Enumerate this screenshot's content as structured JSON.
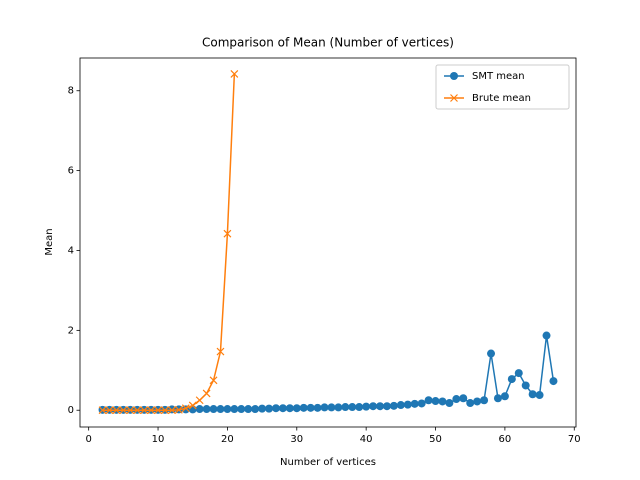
{
  "chart_data": {
    "type": "line",
    "title": "Comparison of Mean (Number of vertices)",
    "x_label": "Number of vertices",
    "y_label": "Mean",
    "xlim": [
      -1.25,
      70.25
    ],
    "ylim": [
      -0.42,
      8.82
    ],
    "xticks": [
      0,
      10,
      20,
      30,
      40,
      50,
      60,
      70
    ],
    "yticks": [
      0,
      2,
      4,
      6,
      8
    ],
    "legend": "upper right",
    "series": [
      {
        "name": "SMT mean",
        "color": "#1f77b4",
        "marker": "o",
        "x": [
          2,
          3,
          4,
          5,
          6,
          7,
          8,
          9,
          10,
          11,
          12,
          13,
          14,
          15,
          16,
          17,
          18,
          19,
          20,
          21,
          22,
          23,
          24,
          25,
          26,
          27,
          28,
          29,
          30,
          31,
          32,
          33,
          34,
          35,
          36,
          37,
          38,
          39,
          40,
          41,
          42,
          43,
          44,
          45,
          46,
          47,
          48,
          49,
          50,
          51,
          52,
          53,
          54,
          55,
          56,
          57,
          58,
          59,
          60,
          61,
          62,
          63,
          64,
          65,
          66,
          67
        ],
        "values": [
          0.01,
          0.01,
          0.01,
          0.01,
          0.01,
          0.01,
          0.01,
          0.01,
          0.01,
          0.01,
          0.02,
          0.02,
          0.02,
          0.02,
          0.03,
          0.03,
          0.03,
          0.03,
          0.03,
          0.03,
          0.03,
          0.03,
          0.03,
          0.04,
          0.04,
          0.05,
          0.05,
          0.05,
          0.05,
          0.06,
          0.06,
          0.06,
          0.07,
          0.07,
          0.07,
          0.08,
          0.08,
          0.08,
          0.09,
          0.1,
          0.1,
          0.1,
          0.11,
          0.13,
          0.14,
          0.16,
          0.17,
          0.25,
          0.23,
          0.22,
          0.18,
          0.28,
          0.3,
          0.18,
          0.22,
          0.25,
          1.42,
          0.3,
          0.35,
          0.78,
          0.93,
          0.62,
          0.4,
          0.38,
          1.87,
          0.73
        ]
      },
      {
        "name": "Brute mean",
        "color": "#ff7f0e",
        "marker": "x",
        "x": [
          2,
          3,
          4,
          5,
          6,
          7,
          8,
          9,
          10,
          11,
          12,
          13,
          14,
          15,
          16,
          17,
          18,
          19,
          20,
          21
        ],
        "values": [
          0,
          0,
          0,
          0,
          0,
          0,
          0,
          0,
          0,
          0,
          0,
          0.01,
          0.05,
          0.12,
          0.25,
          0.42,
          0.75,
          1.47,
          4.42,
          8.42
        ]
      }
    ]
  }
}
